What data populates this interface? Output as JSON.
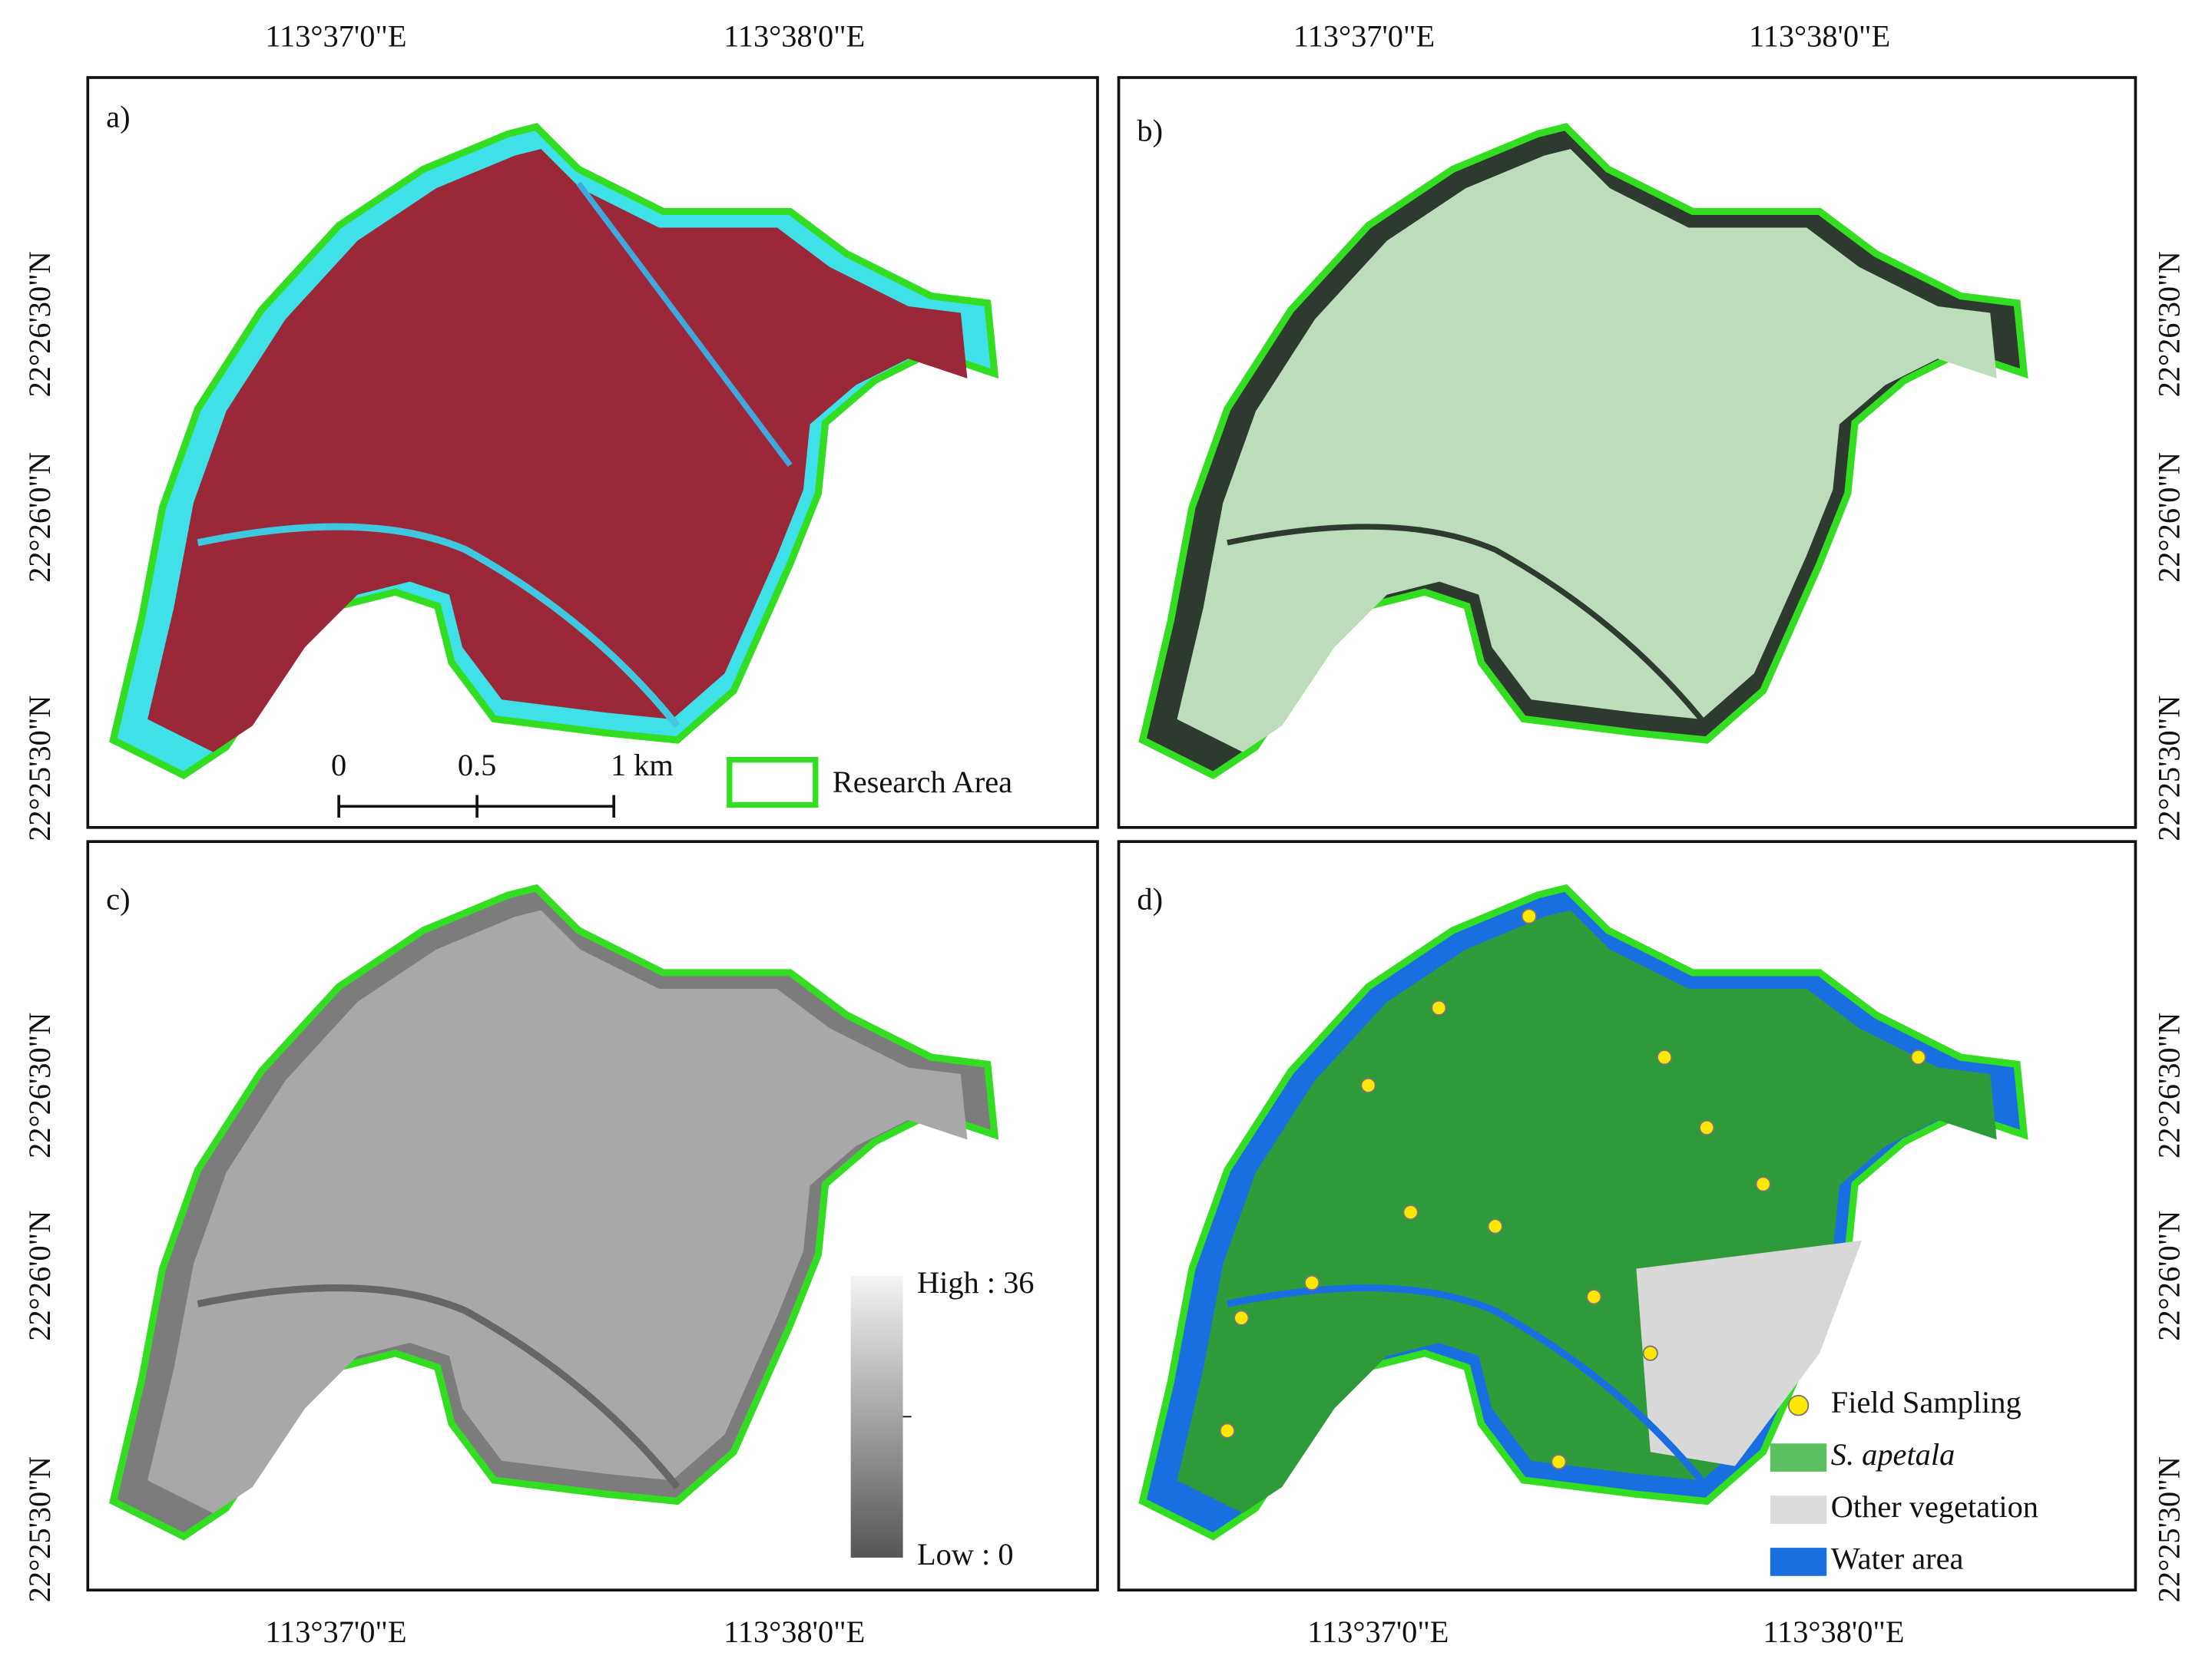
{
  "panel_labels": [
    "a)",
    "b)",
    "c)",
    "d)"
  ],
  "longitude_labels": {
    "a_top": [
      "113°37'0\"E",
      "113°38'0\"E"
    ],
    "b_top": [
      "113°37'0\"E",
      "113°38'0\"E"
    ],
    "c_bottom": [
      "113°37'0\"E",
      "113°38'0\"E"
    ],
    "d_bottom": [
      "113°37'0\"E",
      "113°38'0\"E"
    ]
  },
  "latitude_labels": {
    "a_left": [
      "22°26'30\"N",
      "22°26'0\"N",
      "22°25'30\"N"
    ],
    "b_right": [
      "22°26'30\"N",
      "22°26'0\"N",
      "22°25'30\"N"
    ],
    "c_left": [
      "22°26'30\"N",
      "22°26'0\"N",
      "22°25'30\"N"
    ],
    "d_right": [
      "22°26'30\"N",
      "22°26'0\"N",
      "22°25'30\"N"
    ]
  },
  "scale_bar": {
    "labels": [
      "0",
      "0.5",
      "1 km"
    ]
  },
  "legend_a": "Research Area",
  "colorbar": {
    "high": "High : 36",
    "low": "Low : 0"
  },
  "legend_d": [
    "Field Sampling",
    "S. apetala",
    "Other vegetation",
    "Water area"
  ]
}
